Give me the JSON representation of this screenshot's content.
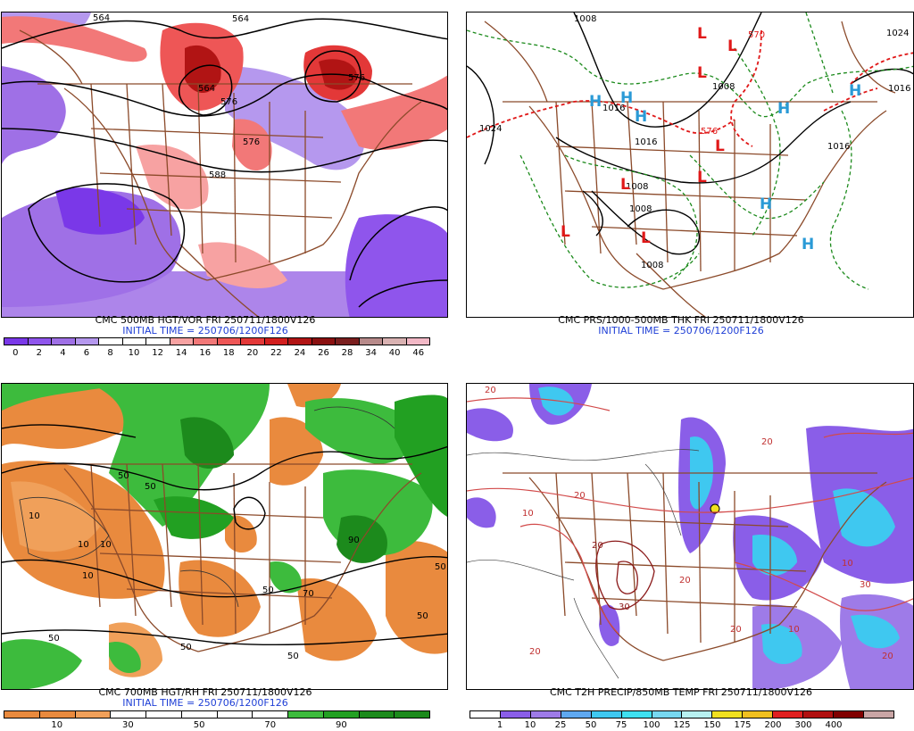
{
  "panels": [
    {
      "id": "p1",
      "caption_line1": "CMC 500MB HGT/VOR FRI 250711/1800V126",
      "caption_line2": "INITIAL TIME = 250706/1200F126",
      "colorbar": {
        "colors": [
          "#7a38e8",
          "#8f55ec",
          "#9f70e6",
          "#b598ee",
          "#ffffff",
          "#ffffff",
          "#ffffff",
          "#f7a2a2",
          "#f27878",
          "#ee5656",
          "#e33838",
          "#d21e1e",
          "#b11414",
          "#8a1010",
          "#7a1e1e",
          "#b78a8a",
          "#d9b2b2",
          "#f2b8c6"
        ],
        "labels": [
          "0",
          "2",
          "4",
          "6",
          "8",
          "10",
          "12",
          "14",
          "16",
          "18",
          "20",
          "22",
          "24",
          "26",
          "28",
          "34",
          "40",
          "46"
        ]
      },
      "contour_labels": [
        "564",
        "564",
        "576",
        "564",
        "576",
        "576",
        "588"
      ]
    },
    {
      "id": "p2",
      "caption_line1": "CMC PRS/1000-500MB THK FRI 250711/1800V126",
      "caption_line2": "INITIAL TIME = 250706/1200F126",
      "contour_labels": [
        "1008",
        "1016",
        "1024",
        "1016",
        "1008",
        "1008",
        "1008",
        "1016",
        "1024",
        "570",
        "576",
        "1008",
        "1016"
      ],
      "high_symbol": "H",
      "low_symbol": "L"
    },
    {
      "id": "p3",
      "caption_line1": "CMC 700MB HGT/RH FRI 250711/1800V126",
      "caption_line2": "INITIAL TIME = 250706/1200F126",
      "colorbar": {
        "colors": [
          "#e98a3e",
          "#e98a3e",
          "#f0a05a",
          "#ffffff",
          "#ffffff",
          "#ffffff",
          "#ffffff",
          "#ffffff",
          "#3dbb3d",
          "#22a022",
          "#1c8a1c",
          "#1c8a1c"
        ],
        "labels": [
          "10",
          "30",
          "50",
          "70",
          "90"
        ]
      },
      "contour_labels": [
        "10",
        "10",
        "50",
        "50",
        "10",
        "90",
        "50",
        "50",
        "70",
        "50",
        "10",
        "50",
        "50",
        "50"
      ]
    },
    {
      "id": "p4",
      "caption_line1": "CMC T2H PRECIP/850MB TEMP FRI 250711/1800V126",
      "caption_line2": "",
      "colorbar": {
        "colors": [
          "#ffffff",
          "#8a5ee8",
          "#9e7be8",
          "#5fa8f0",
          "#3fc8f0",
          "#3fe0f0",
          "#77d8f0",
          "#b8f0f0",
          "#f0e020",
          "#f0c020",
          "#e02020",
          "#b01010",
          "#800000",
          "#c9a5a5"
        ],
        "labels": [
          "1",
          "10",
          "25",
          "50",
          "75",
          "100",
          "125",
          "150",
          "175",
          "200",
          "300",
          "400"
        ]
      },
      "contour_labels": [
        "20",
        "20",
        "10",
        "20",
        "30",
        "20",
        "20",
        "20",
        "10",
        "10",
        "20",
        "30",
        "20"
      ]
    }
  ],
  "colors": {
    "borders": "#8b4a2a",
    "height_contour": "#000000",
    "thickness_green": "#1b8a1b",
    "thickness_red": "#e01818",
    "high_blue": "#2a9ad6",
    "low_red": "#e01818",
    "caption_blue": "#1f3fd6"
  }
}
